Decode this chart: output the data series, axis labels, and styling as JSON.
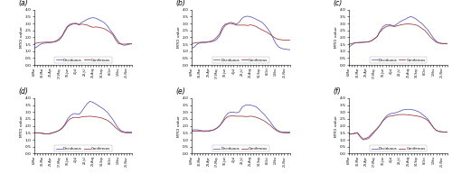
{
  "n_points": 36,
  "x_tick_label_positions": [
    0,
    3,
    6,
    9,
    12,
    15,
    18,
    21,
    24,
    27,
    30,
    33
  ],
  "x_tick_labels": [
    "6-Mar",
    "30-Mar",
    "23-Apr",
    "17-May",
    "10-Jun",
    "4-Jul",
    "28-Jul",
    "21-Aug",
    "14-Sep",
    "8-Oct",
    "1-Nov",
    "25-Nov"
  ],
  "panels": [
    {
      "label": "(a)",
      "dec": [
        1.2,
        1.3,
        1.45,
        1.55,
        1.58,
        1.6,
        1.62,
        1.65,
        1.7,
        1.8,
        2.05,
        2.4,
        2.75,
        2.88,
        2.98,
        3.02,
        2.92,
        3.08,
        3.18,
        3.3,
        3.38,
        3.42,
        3.38,
        3.28,
        3.18,
        3.05,
        2.85,
        2.55,
        2.3,
        2.0,
        1.7,
        1.5,
        1.42,
        1.45,
        1.5,
        1.55
      ],
      "con": [
        1.55,
        1.58,
        1.62,
        1.63,
        1.65,
        1.65,
        1.65,
        1.68,
        1.75,
        1.9,
        2.1,
        2.5,
        2.82,
        2.95,
        3.0,
        2.98,
        2.9,
        2.95,
        2.92,
        2.88,
        2.78,
        2.72,
        2.75,
        2.72,
        2.68,
        2.62,
        2.5,
        2.38,
        2.2,
        1.85,
        1.55,
        1.52,
        1.5,
        1.52,
        1.54,
        1.55
      ]
    },
    {
      "label": "(b)",
      "dec": [
        1.2,
        1.3,
        1.5,
        1.6,
        1.62,
        1.62,
        1.65,
        1.68,
        1.72,
        1.85,
        2.1,
        2.55,
        2.85,
        2.98,
        3.08,
        3.02,
        2.95,
        3.1,
        3.38,
        3.5,
        3.52,
        3.48,
        3.4,
        3.3,
        3.2,
        3.1,
        2.9,
        2.65,
        2.35,
        1.95,
        1.55,
        1.3,
        1.2,
        1.15,
        1.12,
        1.1
      ],
      "con": [
        1.55,
        1.58,
        1.62,
        1.63,
        1.65,
        1.65,
        1.68,
        1.72,
        1.82,
        2.0,
        2.25,
        2.72,
        2.95,
        3.0,
        3.0,
        2.95,
        2.88,
        2.88,
        2.88,
        2.88,
        2.85,
        2.9,
        2.85,
        2.78,
        2.65,
        2.55,
        2.45,
        2.35,
        2.2,
        2.05,
        1.92,
        1.85,
        1.82,
        1.8,
        1.8,
        1.8
      ]
    },
    {
      "label": "(c)",
      "dec": [
        1.3,
        1.45,
        1.58,
        1.62,
        1.62,
        1.63,
        1.65,
        1.68,
        1.75,
        1.88,
        2.05,
        2.45,
        2.75,
        2.9,
        2.92,
        2.88,
        2.82,
        2.95,
        3.1,
        3.22,
        3.3,
        3.42,
        3.5,
        3.42,
        3.3,
        3.12,
        2.98,
        2.75,
        2.55,
        2.25,
        1.95,
        1.72,
        1.6,
        1.55,
        1.55,
        1.55
      ],
      "con": [
        1.5,
        1.55,
        1.6,
        1.62,
        1.63,
        1.65,
        1.65,
        1.68,
        1.75,
        1.9,
        2.05,
        2.38,
        2.6,
        2.75,
        2.82,
        2.82,
        2.78,
        2.82,
        2.88,
        2.92,
        2.95,
        2.98,
        2.95,
        2.92,
        2.88,
        2.78,
        2.62,
        2.48,
        2.25,
        2.0,
        1.82,
        1.65,
        1.58,
        1.55,
        1.55,
        1.55
      ]
    },
    {
      "label": "(d)",
      "dec": [
        1.5,
        1.5,
        1.48,
        1.45,
        1.42,
        1.42,
        1.48,
        1.52,
        1.58,
        1.68,
        1.85,
        2.12,
        2.5,
        2.75,
        2.88,
        2.88,
        2.82,
        3.05,
        3.35,
        3.62,
        3.78,
        3.7,
        3.58,
        3.45,
        3.32,
        3.18,
        3.0,
        2.75,
        2.48,
        2.15,
        1.85,
        1.65,
        1.58,
        1.55,
        1.55,
        1.55
      ],
      "con": [
        1.5,
        1.5,
        1.5,
        1.48,
        1.42,
        1.42,
        1.45,
        1.52,
        1.6,
        1.68,
        1.82,
        2.05,
        2.35,
        2.52,
        2.6,
        2.62,
        2.6,
        2.65,
        2.68,
        2.68,
        2.7,
        2.68,
        2.65,
        2.62,
        2.58,
        2.5,
        2.42,
        2.28,
        2.1,
        1.88,
        1.72,
        1.58,
        1.52,
        1.5,
        1.5,
        1.5
      ]
    },
    {
      "label": "(e)",
      "dec": [
        1.7,
        1.72,
        1.72,
        1.68,
        1.65,
        1.65,
        1.65,
        1.68,
        1.72,
        1.82,
        2.0,
        2.32,
        2.68,
        2.92,
        3.0,
        2.98,
        2.95,
        3.02,
        3.35,
        3.48,
        3.52,
        3.5,
        3.45,
        3.38,
        3.2,
        3.0,
        2.8,
        2.55,
        2.3,
        2.0,
        1.78,
        1.62,
        1.57,
        1.55,
        1.55,
        1.55
      ],
      "con": [
        1.6,
        1.62,
        1.63,
        1.62,
        1.6,
        1.6,
        1.62,
        1.65,
        1.72,
        1.85,
        2.0,
        2.25,
        2.52,
        2.68,
        2.72,
        2.72,
        2.7,
        2.7,
        2.7,
        2.68,
        2.68,
        2.7,
        2.68,
        2.62,
        2.55,
        2.45,
        2.35,
        2.2,
        2.05,
        1.85,
        1.7,
        1.58,
        1.52,
        1.5,
        1.5,
        1.5
      ]
    },
    {
      "label": "(f)",
      "dec": [
        1.4,
        1.42,
        1.45,
        1.48,
        1.2,
        1.0,
        1.02,
        1.1,
        1.3,
        1.55,
        1.78,
        2.05,
        2.38,
        2.65,
        2.82,
        2.9,
        2.92,
        2.98,
        3.05,
        3.15,
        3.18,
        3.2,
        3.18,
        3.15,
        3.08,
        3.0,
        2.85,
        2.68,
        2.5,
        2.2,
        1.88,
        1.68,
        1.6,
        1.58,
        1.55,
        1.55
      ],
      "con": [
        1.4,
        1.42,
        1.48,
        1.52,
        1.25,
        1.05,
        1.1,
        1.2,
        1.42,
        1.62,
        1.82,
        2.05,
        2.35,
        2.55,
        2.68,
        2.72,
        2.75,
        2.8,
        2.82,
        2.82,
        2.82,
        2.8,
        2.78,
        2.75,
        2.72,
        2.68,
        2.62,
        2.52,
        2.4,
        2.15,
        1.88,
        1.68,
        1.6,
        1.57,
        1.55,
        1.55
      ]
    }
  ],
  "dec_color": "#5555bb",
  "con_color": "#993333",
  "ylim": [
    0,
    4
  ],
  "ylabel": "MTCI value",
  "legend_labels": [
    "Deciduous",
    "Coniferous"
  ],
  "bg_color": "#ffffff"
}
